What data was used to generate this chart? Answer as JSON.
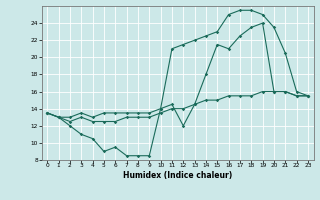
{
  "title": "",
  "xlabel": "Humidex (Indice chaleur)",
  "bg_color": "#cce8e8",
  "line_color": "#1a6b5a",
  "grid_color": "#ffffff",
  "xlim": [
    -0.5,
    23.5
  ],
  "ylim": [
    8,
    26
  ],
  "xticks": [
    0,
    1,
    2,
    3,
    4,
    5,
    6,
    7,
    8,
    9,
    10,
    11,
    12,
    13,
    14,
    15,
    16,
    17,
    18,
    19,
    20,
    21,
    22,
    23
  ],
  "yticks": [
    8,
    10,
    12,
    14,
    16,
    18,
    20,
    22,
    24
  ],
  "series1_x": [
    0,
    1,
    2,
    3,
    4,
    5,
    6,
    7,
    8,
    9,
    10,
    11,
    12,
    13,
    14,
    15,
    16,
    17,
    18,
    19,
    20,
    21,
    22,
    23
  ],
  "series1_y": [
    13.5,
    13.0,
    12.0,
    11.0,
    10.5,
    9.0,
    9.5,
    8.5,
    8.5,
    8.5,
    14.0,
    14.5,
    12.0,
    14.5,
    18.0,
    21.5,
    21.0,
    22.5,
    23.5,
    24.0,
    16.0,
    16.0,
    15.5,
    15.5
  ],
  "series2_x": [
    0,
    1,
    2,
    3,
    4,
    5,
    6,
    7,
    8,
    9,
    10,
    11,
    12,
    13,
    14,
    15,
    16,
    17,
    18,
    19,
    20,
    21,
    22,
    23
  ],
  "series2_y": [
    13.5,
    13.0,
    13.0,
    13.5,
    13.0,
    13.5,
    13.5,
    13.5,
    13.5,
    13.5,
    14.0,
    21.0,
    21.5,
    22.0,
    22.5,
    23.0,
    25.0,
    25.5,
    25.5,
    25.0,
    23.5,
    20.5,
    16.0,
    15.5
  ],
  "series3_x": [
    0,
    1,
    2,
    3,
    4,
    5,
    6,
    7,
    8,
    9,
    10,
    11,
    12,
    13,
    14,
    15,
    16,
    17,
    18,
    19,
    20,
    21,
    22,
    23
  ],
  "series3_y": [
    13.5,
    13.0,
    12.5,
    13.0,
    12.5,
    12.5,
    12.5,
    13.0,
    13.0,
    13.0,
    13.5,
    14.0,
    14.0,
    14.5,
    15.0,
    15.0,
    15.5,
    15.5,
    15.5,
    16.0,
    16.0,
    16.0,
    15.5,
    15.5
  ]
}
